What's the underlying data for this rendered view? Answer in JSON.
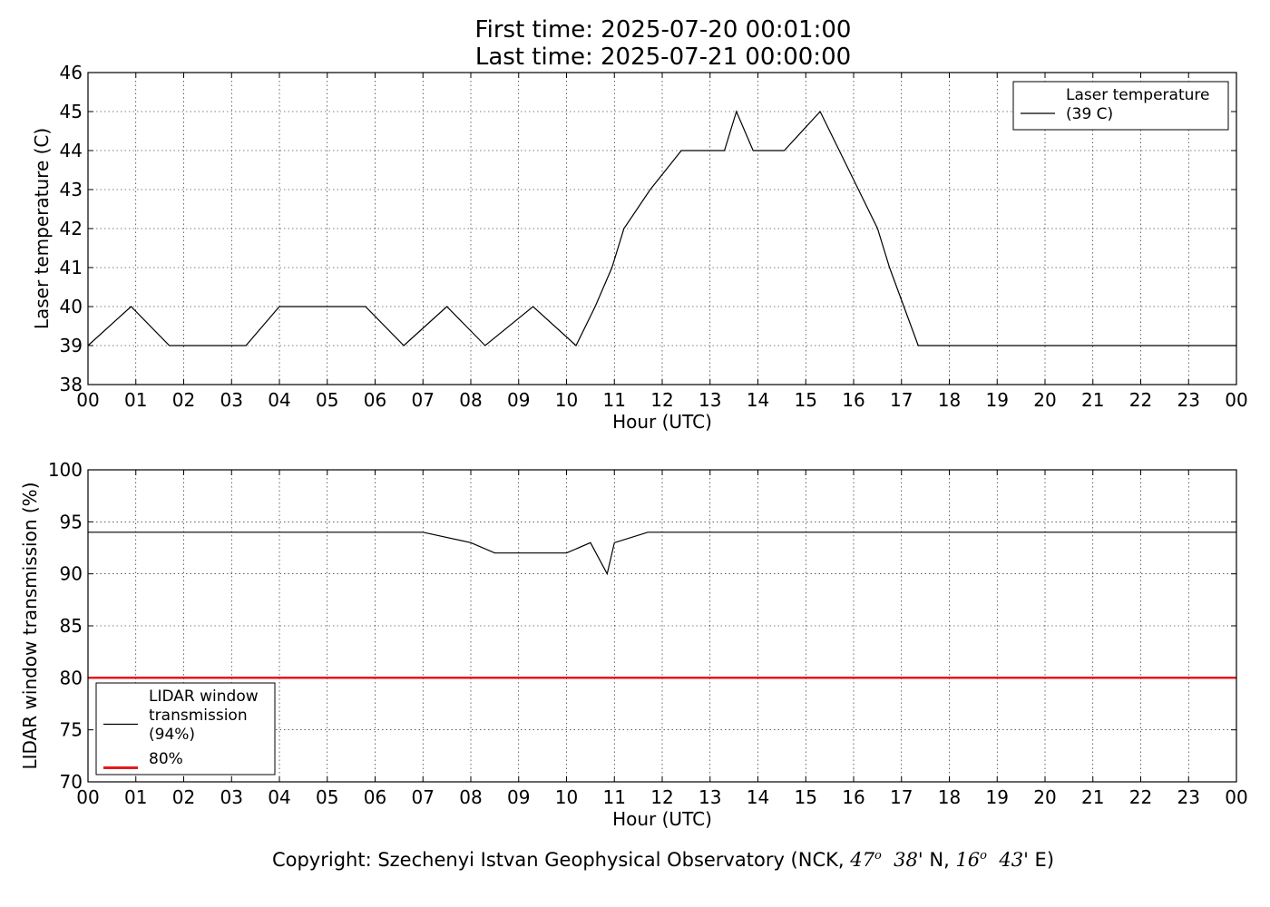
{
  "header": {
    "first_time": "First time: 2025-07-20 00:01:00",
    "last_time": "Last time: 2025-07-21 00:00:00"
  },
  "copyright": {
    "prefix": "Copyright: Szechenyi Istvan Geophysical Observatory (NCK, ",
    "lat_deg": "47",
    "lat_min": "38'",
    "lat_dir": "N,",
    "lon_deg": "16",
    "lon_min": "43'",
    "lon_dir": "E)",
    "degree_symbol": "o"
  },
  "chart_data": [
    {
      "type": "line",
      "xlabel": "Hour (UTC)",
      "ylabel": "Laser temperature (C)",
      "xlim": [
        0,
        24
      ],
      "ylim": [
        38,
        46
      ],
      "x_tick_labels": [
        "00",
        "01",
        "02",
        "03",
        "04",
        "05",
        "06",
        "07",
        "08",
        "09",
        "10",
        "11",
        "12",
        "13",
        "14",
        "15",
        "16",
        "17",
        "18",
        "19",
        "20",
        "21",
        "22",
        "23",
        "00"
      ],
      "y_ticks": [
        38,
        39,
        40,
        41,
        42,
        43,
        44,
        45,
        46
      ],
      "grid": true,
      "legend": {
        "position": "upper right",
        "entries": [
          "Laser temperature\n(39 C)"
        ]
      },
      "series": [
        {
          "name": "Laser temperature\n(39 C)",
          "color": "#000000",
          "x": [
            0.0,
            0.9,
            1.7,
            2.2,
            2.8,
            3.3,
            4.0,
            5.0,
            5.8,
            6.6,
            7.5,
            8.3,
            9.3,
            10.2,
            10.6,
            10.95,
            11.2,
            11.75,
            12.4,
            13.3,
            13.55,
            13.9,
            14.2,
            14.55,
            15.3,
            15.7,
            16.1,
            16.5,
            16.75,
            17.05,
            17.35,
            18.0,
            19.0,
            19.8,
            20.8,
            21.5,
            22.5,
            23.2,
            24.0
          ],
          "y": [
            39,
            40,
            39,
            39,
            39,
            39,
            40,
            40,
            40,
            39,
            40,
            39,
            40,
            39,
            40,
            41,
            42,
            43,
            44,
            44,
            45,
            44,
            44,
            44,
            45,
            44,
            43,
            42,
            41,
            40,
            39,
            39,
            39,
            39,
            39,
            39,
            39,
            39,
            39
          ]
        }
      ]
    },
    {
      "type": "line",
      "xlabel": "Hour (UTC)",
      "ylabel": "LIDAR window transmission (%)",
      "xlim": [
        0,
        24
      ],
      "ylim": [
        70,
        100
      ],
      "x_tick_labels": [
        "00",
        "01",
        "02",
        "03",
        "04",
        "05",
        "06",
        "07",
        "08",
        "09",
        "10",
        "11",
        "12",
        "13",
        "14",
        "15",
        "16",
        "17",
        "18",
        "19",
        "20",
        "21",
        "22",
        "23",
        "00"
      ],
      "y_ticks": [
        70,
        75,
        80,
        85,
        90,
        95,
        100
      ],
      "grid": true,
      "legend": {
        "position": "lower left",
        "entries": [
          "LIDAR window\ntransmission\n(94%)",
          "80%"
        ]
      },
      "series": [
        {
          "name": "LIDAR window\ntransmission\n(94%)",
          "color": "#000000",
          "x": [
            0.0,
            2.0,
            3.0,
            4.0,
            5.0,
            6.0,
            7.0,
            8.0,
            8.5,
            9.0,
            9.5,
            10.0,
            10.5,
            10.85,
            11.0,
            11.7,
            12.5,
            13.5,
            14.5,
            15.5,
            16.5,
            17.0,
            18.0,
            18.9,
            19.0,
            24.0
          ],
          "y": [
            94,
            94,
            94,
            94,
            94,
            94,
            94,
            93,
            92,
            92,
            92,
            92,
            93,
            90,
            93,
            94,
            94,
            94,
            94,
            94,
            94,
            94,
            94,
            94,
            94,
            94
          ]
        },
        {
          "name": "80%",
          "color": "#e41a1c",
          "x": [
            0,
            24
          ],
          "y": [
            80,
            80
          ]
        }
      ]
    }
  ]
}
